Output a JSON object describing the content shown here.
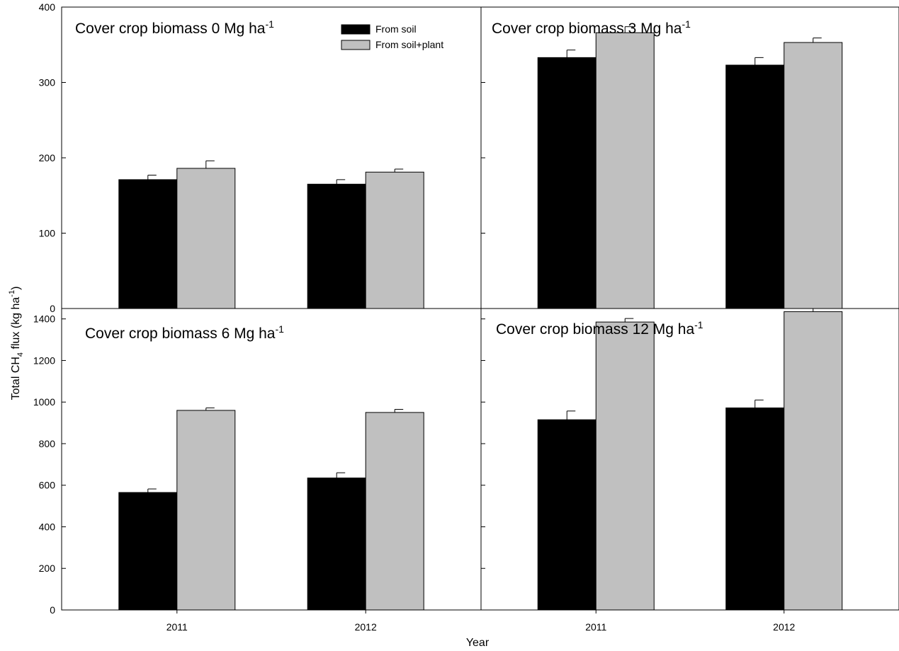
{
  "chart_data": {
    "type": "bar",
    "ylabel": "Total CH4 flux (kg ha-1)",
    "xlabel": "Year",
    "legend_placement": "top-right of top-left panel",
    "colors": {
      "From soil": "#000000",
      "From soil+plant": "#c0c0c0"
    },
    "legend": [
      {
        "name": "From soil",
        "color": "#000000"
      },
      {
        "name": "From soil+plant",
        "color": "#c0c0c0"
      }
    ],
    "panels": [
      {
        "title": "Cover crop biomass 0 Mg ha",
        "title_sup": "-1",
        "categories": [
          "2011",
          "2012"
        ],
        "ylim": [
          0,
          400
        ],
        "yticks": [
          0,
          100,
          200,
          300,
          400
        ],
        "show_y_labels": true,
        "show_x_labels": false,
        "series": [
          {
            "name": "From soil",
            "values": [
              171,
              165
            ],
            "errors": [
              6,
              6
            ]
          },
          {
            "name": "From soil+plant",
            "values": [
              186,
              181
            ],
            "errors": [
              10,
              4
            ]
          }
        ]
      },
      {
        "title": "Cover crop biomass 3 Mg ha",
        "title_sup": "-1",
        "categories": [
          "2011",
          "2012"
        ],
        "ylim": [
          0,
          400
        ],
        "yticks": [
          0,
          100,
          200,
          300,
          400
        ],
        "show_y_labels": false,
        "show_x_labels": false,
        "series": [
          {
            "name": "From soil",
            "values": [
              333,
              323
            ],
            "errors": [
              10,
              10
            ]
          },
          {
            "name": "From soil+plant",
            "values": [
              366,
              353
            ],
            "errors": [
              8,
              6
            ]
          }
        ]
      },
      {
        "title": "Cover crop biomass 6 Mg ha",
        "title_sup": "-1",
        "categories": [
          "2011",
          "2012"
        ],
        "ylim": [
          0,
          1450
        ],
        "yticks": [
          0,
          200,
          400,
          600,
          800,
          1000,
          1200,
          1400
        ],
        "show_y_labels": true,
        "show_x_labels": true,
        "series": [
          {
            "name": "From soil",
            "values": [
              565,
              635
            ],
            "errors": [
              17,
              25
            ]
          },
          {
            "name": "From soil+plant",
            "values": [
              960,
              950
            ],
            "errors": [
              12,
              15
            ]
          }
        ]
      },
      {
        "title": "Cover crop biomass 12 Mg ha",
        "title_sup": "-1",
        "categories": [
          "2011",
          "2012"
        ],
        "ylim": [
          0,
          1450
        ],
        "yticks": [
          0,
          200,
          400,
          600,
          800,
          1000,
          1200,
          1400
        ],
        "show_y_labels": false,
        "show_x_labels": true,
        "series": [
          {
            "name": "From soil",
            "values": [
              915,
              972
            ],
            "errors": [
              42,
              38
            ]
          },
          {
            "name": "From soil+plant",
            "values": [
              1385,
              1435
            ],
            "errors": [
              17,
              15
            ]
          }
        ]
      }
    ]
  }
}
